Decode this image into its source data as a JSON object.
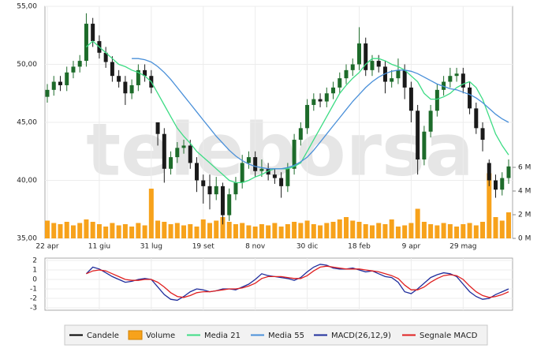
{
  "chart_data": [
    {
      "type": "candlestick",
      "watermark": "teleborsa",
      "grid": true,
      "up_color": "#1d6b2a",
      "down_color": "#1a1a1a",
      "xlim": [
        0,
        71
      ],
      "xticks": [
        {
          "value": 0,
          "label": "22 apr"
        },
        {
          "value": 8,
          "label": "11 giu"
        },
        {
          "value": 16,
          "label": "31 lug"
        },
        {
          "value": 24,
          "label": "19 set"
        },
        {
          "value": 32,
          "label": "8 nov"
        },
        {
          "value": 40,
          "label": "30 dic"
        },
        {
          "value": 48,
          "label": "18 feb"
        },
        {
          "value": 56,
          "label": "9 apr"
        },
        {
          "value": 64,
          "label": "29 mag"
        }
      ],
      "ylim": [
        35,
        55
      ],
      "yticks": [
        {
          "value": 35,
          "label": "35,00"
        },
        {
          "value": 40,
          "label": "40,00"
        },
        {
          "value": 45,
          "label": "45,00"
        },
        {
          "value": 50,
          "label": "50,00"
        },
        {
          "value": 55,
          "label": "55,00"
        }
      ],
      "y2lim": [
        0,
        19.6
      ],
      "y2ticks": [
        {
          "value": 0,
          "label": "0 M"
        },
        {
          "value": 2,
          "label": "2 M"
        },
        {
          "value": 4,
          "label": "4 M"
        },
        {
          "value": 6,
          "label": "6 M"
        }
      ],
      "series": [
        {
          "name": "Candele",
          "color": "#000000",
          "open": [
            47.2,
            47.8,
            48.5,
            48.2,
            49.3,
            49.8,
            50.3,
            53.5,
            52.0,
            51.0,
            50.2,
            49.0,
            48.5,
            47.5,
            48.2,
            49.5,
            49.0,
            45.0,
            44.0,
            41.0,
            42.0,
            42.8,
            43.0,
            41.5,
            40.0,
            39.5,
            38.8,
            39.5,
            37.0,
            38.8,
            39.8,
            41.5,
            42.0,
            40.8,
            41.0,
            40.5,
            40.2,
            39.5,
            41.0,
            43.5,
            44.5,
            46.5,
            47.0,
            46.8,
            47.5,
            48.0,
            48.8,
            49.5,
            50.0,
            51.8,
            49.5,
            50.3,
            49.8,
            48.5,
            48.8,
            49.5,
            48.0,
            46.0,
            41.8,
            44.2,
            46.0,
            47.8,
            48.5,
            49.0,
            49.2,
            48.0,
            46.2,
            44.5,
            41.5,
            40.0,
            39.2,
            40.2
          ],
          "high": [
            48.3,
            49.0,
            49.0,
            49.8,
            50.3,
            50.8,
            54.4,
            54.0,
            52.5,
            51.5,
            50.7,
            49.5,
            49.0,
            48.7,
            50.0,
            50.0,
            49.5,
            45.0,
            44.5,
            42.5,
            43.3,
            43.5,
            43.5,
            42.0,
            40.5,
            40.5,
            40.3,
            39.8,
            39.3,
            40.3,
            42.2,
            42.5,
            42.5,
            41.8,
            41.5,
            41.0,
            40.7,
            41.5,
            44.0,
            45.0,
            47.0,
            47.5,
            47.5,
            48.0,
            48.5,
            49.3,
            50.0,
            50.5,
            53.2,
            52.3,
            50.8,
            50.8,
            50.3,
            49.5,
            50.5,
            50.0,
            48.5,
            46.5,
            44.7,
            46.5,
            48.3,
            49.0,
            49.7,
            49.7,
            49.7,
            48.5,
            46.7,
            45.0,
            41.8,
            40.5,
            40.7,
            41.8
          ],
          "low": [
            46.7,
            47.3,
            47.7,
            47.7,
            48.8,
            49.3,
            49.8,
            51.5,
            50.5,
            49.7,
            48.5,
            48.0,
            46.5,
            47.0,
            47.7,
            48.5,
            47.5,
            43.0,
            39.8,
            40.5,
            41.5,
            42.3,
            41.0,
            39.0,
            38.0,
            37.5,
            38.3,
            36.2,
            36.5,
            38.3,
            39.3,
            41.0,
            40.3,
            40.3,
            40.0,
            39.7,
            38.5,
            39.0,
            40.5,
            43.0,
            44.0,
            46.0,
            46.3,
            46.3,
            47.0,
            47.5,
            48.3,
            49.0,
            49.5,
            49.0,
            49.0,
            49.3,
            47.5,
            48.0,
            48.3,
            47.0,
            45.0,
            40.5,
            41.3,
            43.7,
            45.5,
            47.3,
            48.0,
            48.5,
            47.5,
            45.7,
            44.0,
            42.5,
            39.5,
            38.5,
            38.7,
            39.7
          ],
          "close": [
            47.8,
            48.5,
            48.2,
            49.3,
            49.8,
            50.3,
            53.5,
            52.0,
            51.0,
            50.2,
            49.0,
            48.5,
            47.5,
            48.2,
            49.5,
            49.0,
            48.0,
            44.0,
            41.0,
            42.0,
            42.8,
            43.0,
            41.5,
            40.0,
            39.5,
            38.8,
            39.5,
            37.0,
            38.8,
            39.8,
            41.5,
            42.0,
            40.8,
            41.0,
            40.5,
            40.2,
            39.5,
            41.0,
            43.5,
            44.5,
            46.5,
            47.0,
            46.8,
            47.5,
            48.0,
            48.8,
            49.5,
            50.0,
            51.8,
            49.5,
            50.3,
            49.8,
            48.5,
            48.8,
            49.5,
            48.0,
            46.0,
            41.8,
            44.2,
            46.0,
            47.8,
            48.5,
            49.0,
            49.2,
            48.0,
            46.2,
            44.5,
            43.5,
            40.0,
            39.2,
            40.2,
            41.2
          ]
        },
        {
          "name": "Volume",
          "color": "#f7a21b",
          "axis": "y2",
          "values": [
            1.5,
            1.3,
            1.2,
            1.4,
            1.1,
            1.3,
            1.6,
            1.4,
            1.2,
            1.0,
            1.3,
            1.1,
            1.2,
            1.0,
            1.3,
            1.1,
            4.2,
            1.5,
            1.4,
            1.2,
            1.3,
            1.1,
            1.2,
            1.0,
            1.6,
            1.3,
            1.5,
            1.8,
            1.4,
            1.2,
            1.3,
            1.1,
            1.0,
            1.2,
            1.1,
            1.3,
            1.0,
            1.2,
            1.4,
            1.3,
            1.5,
            1.2,
            1.1,
            1.3,
            1.4,
            1.6,
            1.8,
            1.5,
            1.4,
            1.2,
            1.1,
            1.3,
            1.2,
            1.6,
            1.0,
            1.1,
            1.3,
            2.5,
            1.4,
            1.2,
            1.1,
            1.3,
            1.2,
            1.0,
            1.2,
            1.3,
            1.1,
            1.4,
            5.5,
            1.8,
            1.5,
            2.2
          ]
        },
        {
          "name": "Media 21",
          "color": "#3ddc84",
          "values": [
            null,
            null,
            null,
            null,
            null,
            null,
            51.5,
            52,
            51.5,
            51,
            50.5,
            50,
            49.8,
            49.5,
            49.3,
            49.0,
            48.5,
            47.5,
            46.5,
            45.5,
            44.5,
            43.8,
            43.2,
            42.5,
            42,
            41.5,
            41,
            40.5,
            40,
            39.8,
            39.8,
            40,
            40.3,
            40.5,
            40.8,
            41,
            41,
            41,
            41.2,
            41.5,
            42.5,
            43.5,
            44.5,
            45.5,
            46.5,
            47.5,
            48.2,
            48.8,
            49.3,
            50,
            50.5,
            50.5,
            50.3,
            50,
            49.8,
            49.5,
            49,
            48.5,
            47.5,
            47,
            47,
            47.2,
            47.5,
            48,
            48.3,
            48.5,
            48,
            47,
            45.5,
            44,
            43,
            42.2
          ]
        },
        {
          "name": "Media 55",
          "color": "#4a90d9",
          "values": [
            null,
            null,
            null,
            null,
            null,
            null,
            null,
            null,
            null,
            null,
            null,
            null,
            null,
            50.5,
            50.5,
            50.4,
            50.2,
            49.8,
            49.3,
            48.7,
            48,
            47.3,
            46.6,
            45.9,
            45.2,
            44.5,
            43.8,
            43.2,
            42.6,
            42.1,
            41.7,
            41.4,
            41.2,
            41.1,
            41.0,
            41.0,
            41.0,
            41.1,
            41.3,
            41.6,
            42,
            42.6,
            43.3,
            44,
            44.7,
            45.4,
            46.1,
            46.8,
            47.4,
            48,
            48.5,
            48.9,
            49.2,
            49.4,
            49.5,
            49.5,
            49.4,
            49.2,
            48.9,
            48.6,
            48.3,
            48.1,
            47.9,
            47.8,
            47.6,
            47.4,
            47.1,
            46.7,
            46.2,
            45.7,
            45.3,
            45.0
          ]
        }
      ]
    },
    {
      "type": "line",
      "grid": true,
      "ylim": [
        -3.25,
        2.25
      ],
      "yticks": [
        2,
        1,
        0,
        -1,
        -2,
        -3
      ],
      "series": [
        {
          "name": "MACD(26,12,9)",
          "color": "#1f2d9c",
          "values": [
            null,
            null,
            null,
            null,
            null,
            null,
            0.6,
            1.3,
            1.1,
            0.7,
            0.3,
            0.0,
            -0.3,
            -0.2,
            0.0,
            0.1,
            0.0,
            -0.8,
            -1.6,
            -2.1,
            -2.2,
            -1.8,
            -1.3,
            -1.0,
            -1.1,
            -1.3,
            -1.2,
            -1.0,
            -1.0,
            -1.1,
            -0.8,
            -0.5,
            0.0,
            0.6,
            0.4,
            0.3,
            0.2,
            0.1,
            -0.1,
            0.2,
            0.8,
            1.3,
            1.6,
            1.5,
            1.2,
            1.1,
            1.1,
            1.2,
            1.0,
            0.8,
            0.9,
            0.6,
            0.3,
            0.2,
            -0.3,
            -1.3,
            -1.5,
            -1.0,
            -0.4,
            0.2,
            0.5,
            0.7,
            0.6,
            0.3,
            -0.5,
            -1.3,
            -1.8,
            -2.1,
            -2.0,
            -1.6,
            -1.3,
            -1.0
          ]
        },
        {
          "name": "Segnale MACD",
          "color": "#e02020",
          "values": [
            null,
            null,
            null,
            null,
            null,
            null,
            0.6,
            0.9,
            1.0,
            0.9,
            0.6,
            0.3,
            0.0,
            -0.1,
            -0.1,
            0.0,
            0.0,
            -0.3,
            -0.8,
            -1.4,
            -1.8,
            -1.9,
            -1.7,
            -1.4,
            -1.3,
            -1.3,
            -1.2,
            -1.1,
            -1.0,
            -1.0,
            -0.9,
            -0.7,
            -0.4,
            0.1,
            0.3,
            0.3,
            0.3,
            0.2,
            0.1,
            0.1,
            0.4,
            0.9,
            1.3,
            1.4,
            1.3,
            1.2,
            1.1,
            1.1,
            1.1,
            1.0,
            0.9,
            0.8,
            0.6,
            0.4,
            0.1,
            -0.6,
            -1.1,
            -1.1,
            -0.8,
            -0.3,
            0.1,
            0.4,
            0.5,
            0.4,
            0.0,
            -0.7,
            -1.3,
            -1.7,
            -1.9,
            -1.8,
            -1.6,
            -1.3
          ]
        }
      ]
    }
  ]
}
